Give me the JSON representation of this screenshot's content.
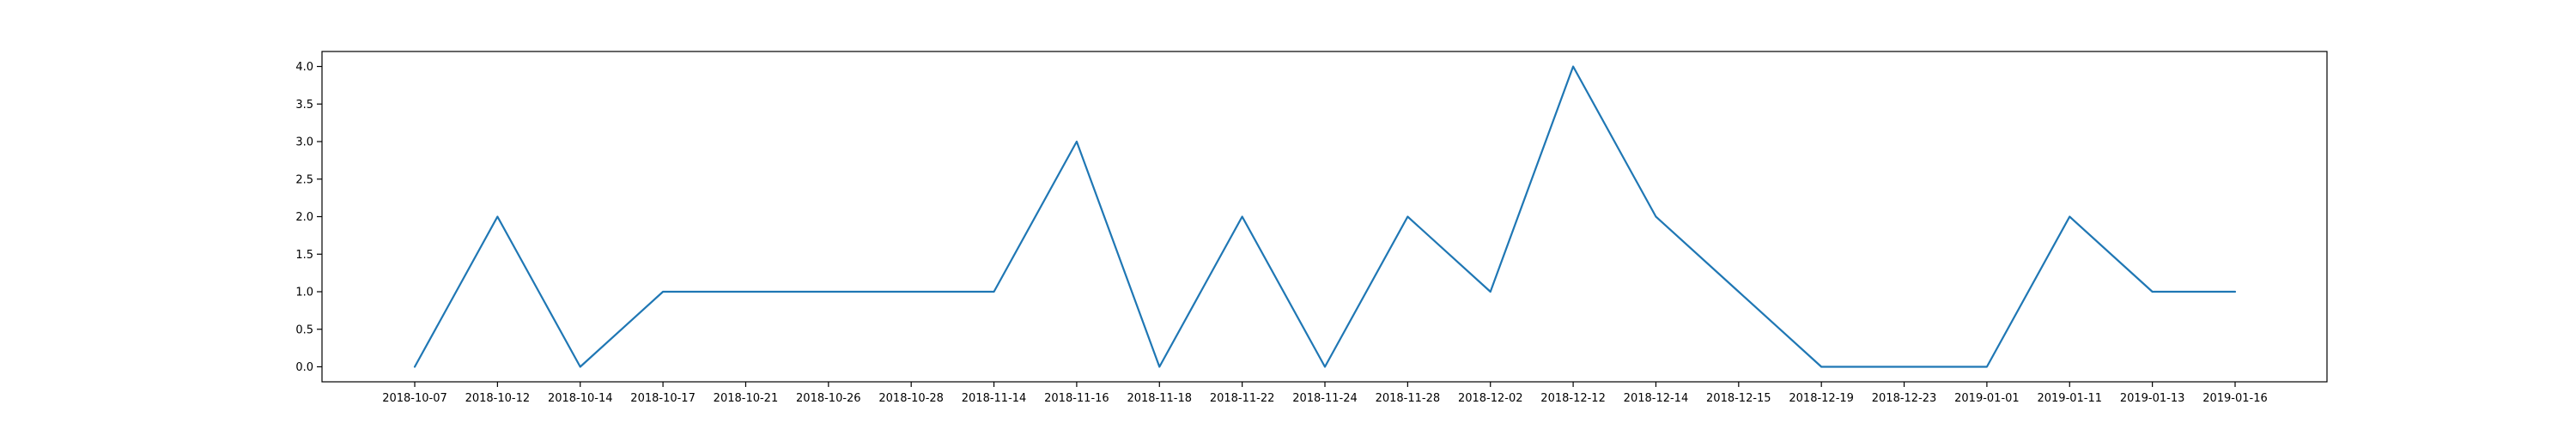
{
  "chart_data": {
    "type": "line",
    "title": "",
    "xlabel": "",
    "ylabel": "",
    "categories": [
      "2018-10-07",
      "2018-10-12",
      "2018-10-14",
      "2018-10-17",
      "2018-10-21",
      "2018-10-26",
      "2018-10-28",
      "2018-11-14",
      "2018-11-16",
      "2018-11-18",
      "2018-11-22",
      "2018-11-24",
      "2018-11-28",
      "2018-12-02",
      "2018-12-12",
      "2018-12-14",
      "2018-12-15",
      "2018-12-19",
      "2018-12-23",
      "2019-01-01",
      "2019-01-11",
      "2019-01-13",
      "2019-01-16"
    ],
    "series": [
      {
        "values": [
          0,
          2,
          0,
          1,
          1,
          1,
          1,
          1,
          3,
          0,
          2,
          0,
          2,
          1,
          4,
          2,
          1,
          0,
          0,
          0,
          2,
          1,
          1
        ]
      }
    ],
    "ylim": [
      -0.2,
      4.2
    ],
    "yticks": [
      0.0,
      0.5,
      1.0,
      1.5,
      2.0,
      2.5,
      3.0,
      3.5,
      4.0
    ],
    "ytick_labels": [
      "0.0",
      "0.5",
      "1.0",
      "1.5",
      "2.0",
      "2.5",
      "3.0",
      "3.5",
      "4.0"
    ],
    "grid": false,
    "legend": "none",
    "colors": {
      "line": "#1f77b4",
      "axes": "#000000",
      "background": "#ffffff"
    }
  }
}
